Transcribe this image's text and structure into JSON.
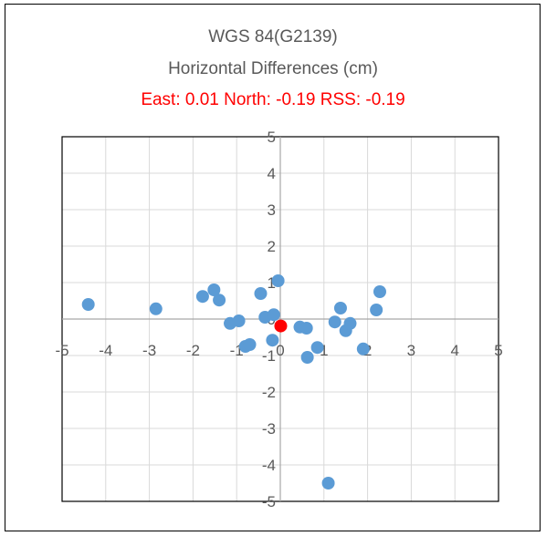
{
  "chart_data": {
    "type": "scatter",
    "title": "WGS 84(G2139)",
    "subtitle": "Horizontal Differences (cm)",
    "summary": "East: 0.01 North: -0.19 RSS: -0.19",
    "xlim": [
      -5,
      5
    ],
    "ylim": [
      -5,
      5
    ],
    "x_ticks": [
      "-5",
      "-4",
      "-3",
      "-2",
      "-1",
      "0",
      "1",
      "2",
      "3",
      "4",
      "5"
    ],
    "y_ticks": [
      "-5",
      "-4",
      "-3",
      "-2",
      "-1",
      "0",
      "1",
      "2",
      "3",
      "4",
      "5"
    ],
    "grid": true,
    "legend": false,
    "series": [
      {
        "color": "#5b9bd5",
        "points": [
          [
            -4.4,
            0.4
          ],
          [
            -2.85,
            0.28
          ],
          [
            -1.78,
            0.62
          ],
          [
            -1.52,
            0.8
          ],
          [
            -1.4,
            0.52
          ],
          [
            -1.15,
            -0.12
          ],
          [
            -0.95,
            -0.05
          ],
          [
            -0.8,
            -0.75
          ],
          [
            -0.7,
            -0.7
          ],
          [
            -0.45,
            0.7
          ],
          [
            -0.35,
            0.05
          ],
          [
            -0.15,
            0.12
          ],
          [
            -0.18,
            -0.58
          ],
          [
            -0.05,
            1.05
          ],
          [
            0.45,
            -0.22
          ],
          [
            0.6,
            -0.25
          ],
          [
            0.62,
            -1.05
          ],
          [
            0.85,
            -0.78
          ],
          [
            1.1,
            -4.5
          ],
          [
            1.25,
            -0.08
          ],
          [
            1.38,
            0.3
          ],
          [
            1.5,
            -0.32
          ],
          [
            1.6,
            -0.12
          ],
          [
            1.9,
            -0.82
          ],
          [
            2.2,
            0.25
          ],
          [
            2.28,
            0.75
          ]
        ]
      },
      {
        "color": "#ff0000",
        "points": [
          [
            0.01,
            -0.19
          ]
        ]
      }
    ]
  }
}
